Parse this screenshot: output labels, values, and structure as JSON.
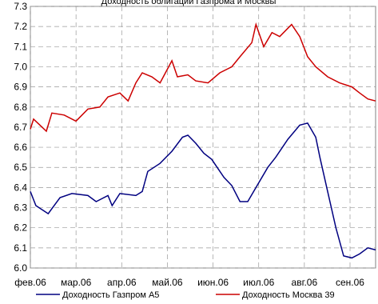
{
  "chart_data": {
    "type": "line",
    "title": "Доходность облигаций Газпрома и Москвы",
    "xlim": [
      0,
      7.56
    ],
    "xticks": [
      {
        "value": 0,
        "label": "фев.06"
      },
      {
        "value": 1,
        "label": "мар.06"
      },
      {
        "value": 2,
        "label": "апр.06"
      },
      {
        "value": 3,
        "label": "май.06"
      },
      {
        "value": 4,
        "label": "июн.06"
      },
      {
        "value": 5,
        "label": "июл.06"
      },
      {
        "value": 6,
        "label": "авг.06"
      },
      {
        "value": 7,
        "label": "сен.06"
      }
    ],
    "ylim": [
      6.0,
      7.3
    ],
    "yticks": [
      {
        "value": 6.0,
        "label": "6.0"
      },
      {
        "value": 6.1,
        "label": "6.1"
      },
      {
        "value": 6.2,
        "label": "6.2"
      },
      {
        "value": 6.3,
        "label": "6.3"
      },
      {
        "value": 6.4,
        "label": "6.4"
      },
      {
        "value": 6.5,
        "label": "6.5"
      },
      {
        "value": 6.6,
        "label": "6.6"
      },
      {
        "value": 6.7,
        "label": "6.7"
      },
      {
        "value": 6.8,
        "label": "6.8"
      },
      {
        "value": 6.9,
        "label": "6.9"
      },
      {
        "value": 7.0,
        "label": "7.0"
      },
      {
        "value": 7.1,
        "label": "7.1"
      },
      {
        "value": 7.2,
        "label": "7.2"
      },
      {
        "value": 7.3,
        "label": "7.3"
      }
    ],
    "grid": true,
    "series": [
      {
        "name": "Доходность Газпром А5",
        "color": "#000080",
        "x": [
          0,
          0.12,
          0.39,
          0.65,
          0.91,
          1.26,
          1.44,
          1.7,
          1.79,
          1.96,
          2.31,
          2.45,
          2.57,
          2.84,
          3.1,
          3.33,
          3.45,
          3.62,
          3.8,
          3.97,
          4.24,
          4.41,
          4.59,
          4.76,
          4.94,
          5.2,
          5.37,
          5.64,
          5.9,
          6.07,
          6.25,
          6.34,
          6.51,
          6.69,
          6.86,
          7.04,
          7.21,
          7.39,
          7.56
        ],
        "values": [
          6.38,
          6.31,
          6.27,
          6.35,
          6.37,
          6.36,
          6.33,
          6.36,
          6.31,
          6.37,
          6.36,
          6.38,
          6.48,
          6.52,
          6.58,
          6.65,
          6.66,
          6.62,
          6.57,
          6.54,
          6.45,
          6.41,
          6.33,
          6.33,
          6.4,
          6.5,
          6.55,
          6.64,
          6.71,
          6.72,
          6.65,
          6.55,
          6.38,
          6.2,
          6.06,
          6.05,
          6.07,
          6.1,
          6.09
        ]
      },
      {
        "name": "Доходность Москва 39",
        "color": "#cc0000",
        "x": [
          0,
          0.07,
          0.21,
          0.35,
          0.47,
          0.74,
          1.0,
          1.26,
          1.52,
          1.7,
          1.96,
          2.14,
          2.31,
          2.45,
          2.66,
          2.84,
          3.1,
          3.22,
          3.45,
          3.62,
          3.89,
          4.15,
          4.41,
          4.59,
          4.85,
          4.94,
          5.11,
          5.29,
          5.46,
          5.72,
          5.9,
          6.07,
          6.25,
          6.51,
          6.77,
          7.04,
          7.21,
          7.39,
          7.56
        ],
        "values": [
          6.69,
          6.74,
          6.71,
          6.68,
          6.77,
          6.76,
          6.73,
          6.79,
          6.8,
          6.85,
          6.87,
          6.83,
          6.92,
          6.97,
          6.95,
          6.92,
          7.03,
          6.95,
          6.96,
          6.93,
          6.92,
          6.97,
          7.0,
          7.05,
          7.12,
          7.21,
          7.1,
          7.17,
          7.15,
          7.21,
          7.15,
          7.05,
          7.0,
          6.95,
          6.92,
          6.9,
          6.87,
          6.84,
          6.83
        ]
      }
    ]
  }
}
